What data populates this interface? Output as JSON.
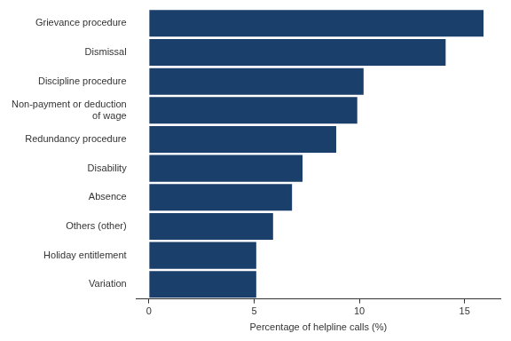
{
  "chart_data": {
    "type": "bar",
    "orientation": "horizontal",
    "x_label": "Percentage of helpline calls (%)",
    "categories": [
      "Grievance procedure",
      "Dismissal",
      "Discipline procedure",
      "Non-payment or deduction of wage",
      "Redundancy procedure",
      "Disability",
      "Absence",
      "Others (other)",
      "Holiday entitlement",
      "Variation"
    ],
    "values": [
      15.9,
      14.1,
      10.2,
      9.9,
      8.9,
      7.3,
      6.8,
      5.9,
      5.1,
      5.1
    ],
    "color": "#1b3f6b",
    "xlim": [
      -0.6,
      16.7
    ],
    "xticks": [
      0,
      5,
      10,
      15
    ],
    "grid": false
  }
}
